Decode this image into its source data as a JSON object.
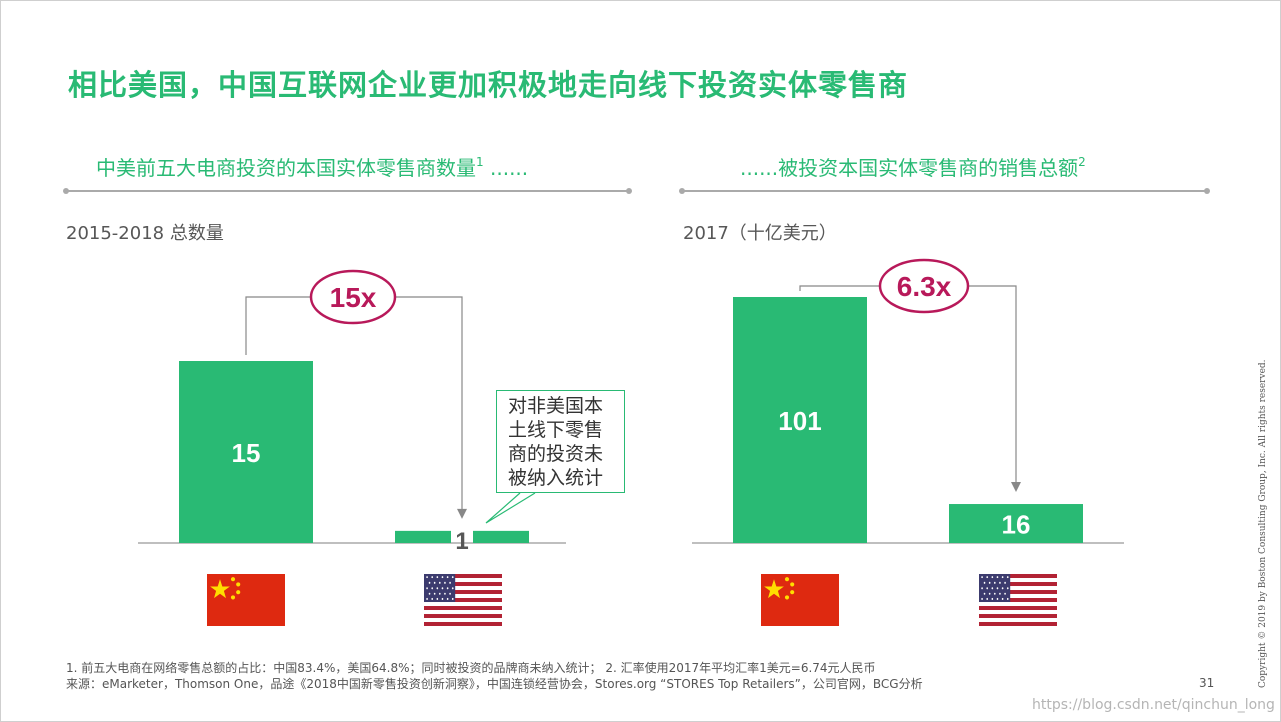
{
  "title": "相比美国，中国互联网企业更加积极地走向线下投资实体零售商",
  "left_section": {
    "heading": "中美前五大电商投资的本国实体零售商数量",
    "heading_sup": "1",
    "heading_suffix": " ......",
    "unit": "2015-2018 总数量"
  },
  "right_section": {
    "heading_prefix": "......",
    "heading": "被投资本国实体零售商的销售总额",
    "heading_sup": "2",
    "unit": "2017（十亿美元）"
  },
  "callout_lines": [
    "对非美国本",
    "土线下零售",
    "商的投资未",
    "被纳入统计"
  ],
  "flags": {
    "china": "china-flag-icon",
    "usa": "usa-flag-icon"
  },
  "colors": {
    "accent": "#29BA74",
    "highlight": "#B8195A",
    "text": "#575757"
  },
  "chart_data": [
    {
      "type": "bar",
      "title": "中美前五大电商投资的本国实体零售商数量",
      "ylabel": "2015-2018 总数量",
      "categories": [
        "中国",
        "美国"
      ],
      "values": [
        15,
        1
      ],
      "value_labels": [
        "15",
        "1"
      ],
      "ylim": [
        0,
        16
      ],
      "multiplier_label": "15x"
    },
    {
      "type": "bar",
      "title": "被投资本国实体零售商的销售总额",
      "ylabel": "2017（十亿美元）",
      "categories": [
        "中国",
        "美国"
      ],
      "values": [
        101,
        16
      ],
      "value_labels": [
        "101",
        "16"
      ],
      "ylim": [
        0,
        105
      ],
      "multiplier_label": "6.3x"
    }
  ],
  "footnotes": {
    "line1": "1. 前五大电商在网络零售总额的占比：中国83.4%，美国64.8%；同时被投资的品牌商未纳入统计；   2. 汇率使用2017年平均汇率1美元=6.74元人民币",
    "line2": "来源：eMarketer，Thomson One，品途《2018中国新零售投资创新洞察》，中国连锁经营协会，Stores.org “STORES Top Retailers”，公司官网，BCG分析"
  },
  "page_number": "31",
  "watermark": "https://blog.csdn.net/qinchun_long",
  "copyright": "Copyright © 2019 by Boston Consulting Group, Inc. All rights reserved."
}
